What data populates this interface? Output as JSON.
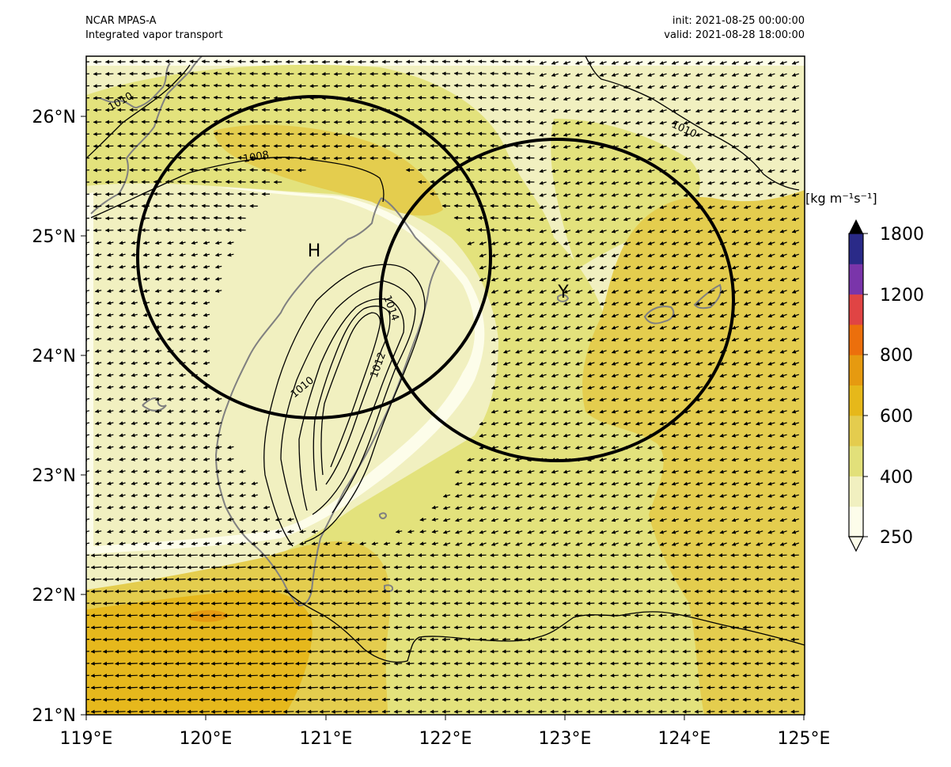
{
  "header": {
    "model": "NCAR MPAS-A",
    "field": "Integrated vapor transport",
    "init": "init: 2021-08-25 00:00:00",
    "valid": "valid: 2021-08-28 18:00:00"
  },
  "map": {
    "lon_range": [
      119,
      125
    ],
    "lat_range": [
      21,
      26.5
    ],
    "lon_ticks": [
      "119°E",
      "120°E",
      "121°E",
      "122°E",
      "123°E",
      "124°E",
      "125°E"
    ],
    "lat_ticks": [
      "21°N",
      "22°N",
      "23°N",
      "24°N",
      "25°N",
      "26°N"
    ],
    "markers": {
      "high": "H",
      "typhoon": "Y"
    },
    "pressure_labels": [
      "1010",
      "1008",
      "1010",
      "1014",
      "1012",
      "1010"
    ]
  },
  "colorbar": {
    "units": "[kg m⁻¹s⁻¹]",
    "tick_labels": [
      "250",
      "400",
      "600",
      "800",
      "1200",
      "1800"
    ],
    "colors": [
      "#fdfdea",
      "#f1f0c0",
      "#e2e07a",
      "#e4cc4e",
      "#e6b81a",
      "#e69a10",
      "#ec6f0c",
      "#e04444",
      "#7a35aa",
      "#2a2a88"
    ]
  },
  "colors": {
    "ivt_250_400": "#fdfdea",
    "ivt_400_500": "#f1f0c0",
    "ivt_500_600": "#e3e27c",
    "ivt_600_700": "#e4cd4e",
    "ivt_700_800": "#e6b81c",
    "ivt_800_1000": "#e69a10",
    "coast": "#808080"
  }
}
